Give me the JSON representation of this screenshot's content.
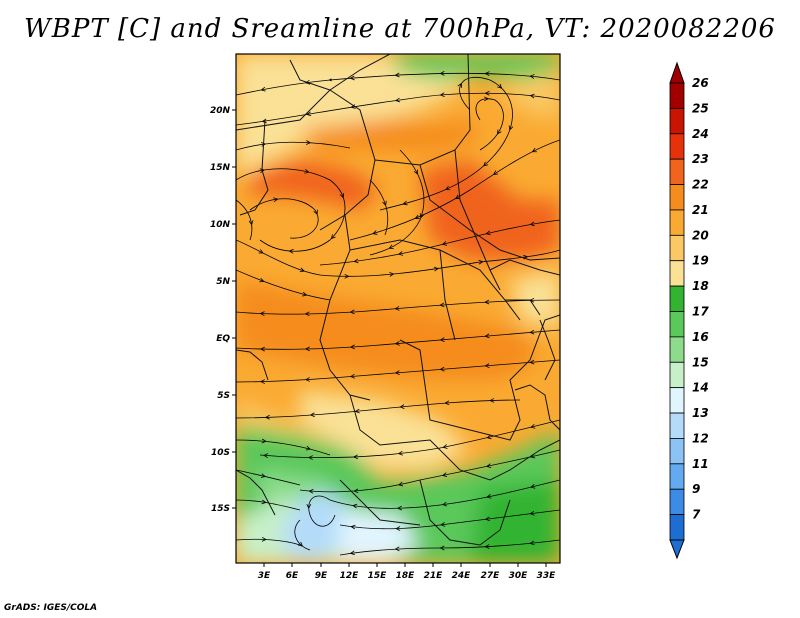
{
  "title": "WBPT [C] and Sreamline at 700hPa, VT: 2020082206",
  "footer": "GrADS: IGES/COLA",
  "map": {
    "lat_ticks": [
      "20N",
      "15N",
      "10N",
      "5N",
      "EQ",
      "5S",
      "10S",
      "15S"
    ],
    "lon_ticks": [
      "3E",
      "6E",
      "9E",
      "12E",
      "15E",
      "18E",
      "21E",
      "24E",
      "27E",
      "30E",
      "33E"
    ]
  },
  "colorbar": {
    "levels": [
      "26",
      "25",
      "24",
      "23",
      "22",
      "21",
      "20",
      "19",
      "18",
      "17",
      "16",
      "15",
      "14",
      "13",
      "12",
      "11",
      "9",
      "7"
    ],
    "colors": [
      "#a00000",
      "#c81400",
      "#e6320a",
      "#f0641e",
      "#f58c1e",
      "#faaa32",
      "#fac864",
      "#fae196",
      "#32b432",
      "#5ac85a",
      "#8cdc8c",
      "#c8f0c8",
      "#e1f5ff",
      "#b4dcfa",
      "#8cc3f5",
      "#64aaf0",
      "#3c8ce6",
      "#1e6ed2"
    ]
  }
}
